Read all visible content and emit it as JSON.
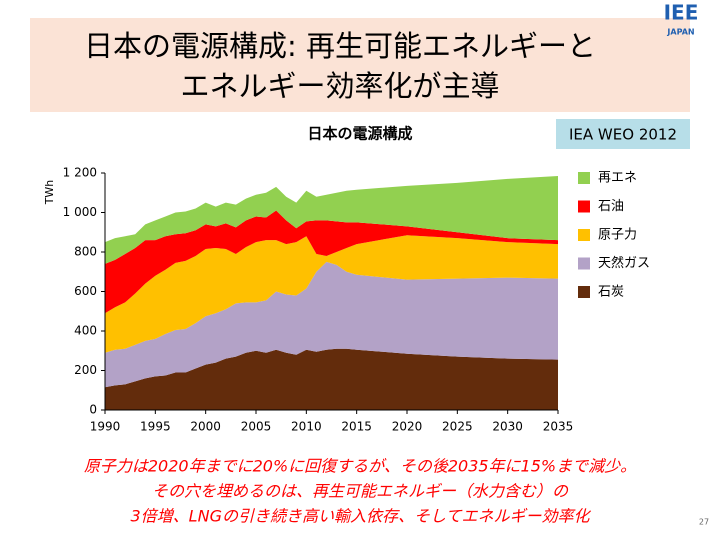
{
  "header": {
    "title_lines": [
      "日本の電源構成: 再生可能エネルギーと",
      "エネルギー効率化が主導"
    ],
    "logo": "IEE",
    "logo_sub": "JAPAN"
  },
  "source": "IEA WEO 2012",
  "chart_data": {
    "type": "stacked_area",
    "title": "日本の電源構成",
    "y_label": "TWh",
    "x": [
      1990,
      1991,
      1992,
      1993,
      1994,
      1995,
      1996,
      1997,
      1998,
      1999,
      2000,
      2001,
      2002,
      2003,
      2004,
      2005,
      2006,
      2007,
      2008,
      2009,
      2010,
      2011,
      2012,
      2013,
      2014,
      2015,
      2020,
      2025,
      2030,
      2035
    ],
    "series": [
      {
        "name": "石炭",
        "color": "#632c0c",
        "values": [
          115,
          125,
          130,
          145,
          160,
          170,
          175,
          190,
          190,
          210,
          230,
          240,
          260,
          270,
          290,
          300,
          290,
          305,
          290,
          280,
          305,
          295,
          305,
          310,
          310,
          305,
          285,
          270,
          260,
          255
        ]
      },
      {
        "name": "天然ガス",
        "color": "#b3a2c7",
        "values": [
          175,
          180,
          180,
          185,
          190,
          190,
          210,
          215,
          220,
          230,
          245,
          250,
          250,
          270,
          255,
          245,
          265,
          295,
          295,
          300,
          310,
          405,
          445,
          425,
          390,
          380,
          375,
          395,
          410,
          410
        ]
      },
      {
        "name": "原子力",
        "color": "#ffc000",
        "values": [
          200,
          215,
          235,
          260,
          290,
          320,
          325,
          340,
          345,
          340,
          340,
          330,
          305,
          250,
          280,
          305,
          305,
          260,
          255,
          270,
          265,
          90,
          30,
          65,
          120,
          155,
          225,
          205,
          180,
          175
        ]
      },
      {
        "name": "石油",
        "color": "#ff0000",
        "values": [
          250,
          240,
          245,
          230,
          220,
          180,
          170,
          145,
          140,
          130,
          125,
          110,
          130,
          135,
          135,
          130,
          115,
          150,
          120,
          70,
          75,
          170,
          180,
          155,
          130,
          110,
          45,
          30,
          20,
          20
        ]
      },
      {
        "name": "再エネ",
        "color": "#92d050",
        "values": [
          110,
          110,
          90,
          70,
          80,
          100,
          100,
          110,
          110,
          110,
          110,
          100,
          105,
          115,
          110,
          110,
          125,
          120,
          120,
          130,
          155,
          120,
          130,
          145,
          160,
          165,
          205,
          250,
          300,
          325
        ]
      }
    ],
    "xlim": [
      1990,
      2035
    ],
    "xticks": [
      1990,
      1995,
      2000,
      2005,
      2010,
      2015,
      2020,
      2025,
      2030,
      2035
    ],
    "ylim": [
      0,
      1200
    ],
    "yticks": [
      0,
      200,
      400,
      600,
      800,
      {
        "value": 1000,
        "label": "1 000"
      },
      {
        "value": 1200,
        "label": "1 200"
      }
    ]
  },
  "caption_lines": [
    "原子力は2020年までに20%に回復するが、その後2035年に15%まで減少。",
    "その穴を埋めるのは、再生可能エネルギー（水力含む）の",
    "3倍増、LNGの引き続き高い輸入依存、そしてエネルギー効率化"
  ],
  "page_number": "27"
}
